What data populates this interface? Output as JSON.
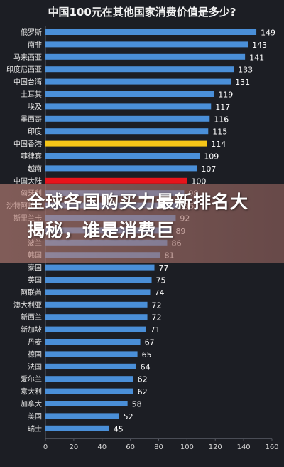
{
  "headline": "全球各国购买力最新排名大揭秘，谁是消费巨",
  "chart_data": {
    "type": "bar",
    "orientation": "horizontal",
    "title": "中国100元在其他国家消费价值是多少?",
    "categories": [
      "俄罗斯",
      "南非",
      "马来西亚",
      "印度尼西亚",
      "中国台湾",
      "土耳其",
      "埃及",
      "墨西哥",
      "印度",
      "中国香港",
      "菲律宾",
      "越南",
      "中国大陆",
      "匈牙利",
      "沙特阿拉伯",
      "斯里兰卡",
      "希腊",
      "波兰",
      "韩国",
      "泰国",
      "英国",
      "阿联酋",
      "澳大利亚",
      "新西兰",
      "新加坡",
      "丹麦",
      "德国",
      "法国",
      "爱尔兰",
      "意大利",
      "加拿大",
      "美国",
      "瑞士"
    ],
    "values": [
      149,
      143,
      141,
      133,
      131,
      119,
      117,
      116,
      115,
      114,
      109,
      107,
      100,
      98,
      95,
      92,
      89,
      86,
      81,
      77,
      75,
      74,
      72,
      72,
      71,
      67,
      65,
      64,
      62,
      62,
      58,
      52,
      45
    ],
    "highlight": {
      "中国香港": "#f5c518",
      "中国大陆": "#e8141b"
    },
    "bar_color": "#4a8fd8",
    "xlim": [
      0,
      160
    ],
    "xticks": [
      0,
      20,
      40,
      60,
      80,
      100,
      120,
      140,
      160
    ],
    "grid": false,
    "xlabel": "",
    "ylabel": ""
  }
}
